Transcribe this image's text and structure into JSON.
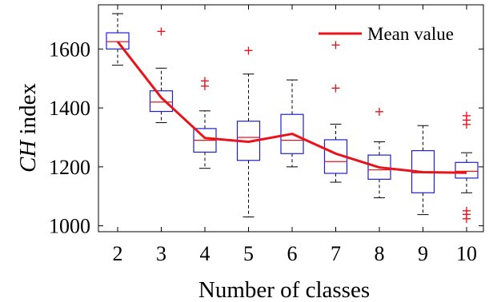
{
  "chart_data": {
    "type": "box",
    "xlabel": "Number of classes",
    "ylabel_italic": "CH",
    "ylabel_rest": " index",
    "ylim": [
      980,
      1750
    ],
    "yticks": [
      1000,
      1200,
      1400,
      1600
    ],
    "categories": [
      "2",
      "3",
      "4",
      "5",
      "6",
      "7",
      "8",
      "9",
      "10"
    ],
    "boxes": [
      {
        "label": "2",
        "whisker_low": 1545,
        "q1": 1600,
        "median": 1625,
        "q3": 1655,
        "whisker_high": 1720,
        "outliers": []
      },
      {
        "label": "3",
        "whisker_low": 1350,
        "q1": 1388,
        "median": 1420,
        "q3": 1458,
        "whisker_high": 1535,
        "outliers": [
          1660
        ]
      },
      {
        "label": "4",
        "whisker_low": 1195,
        "q1": 1250,
        "median": 1290,
        "q3": 1330,
        "whisker_high": 1390,
        "outliers": [
          1475,
          1492
        ]
      },
      {
        "label": "5",
        "whisker_low": 1030,
        "q1": 1222,
        "median": 1300,
        "q3": 1355,
        "whisker_high": 1515,
        "outliers": [
          1595
        ]
      },
      {
        "label": "6",
        "whisker_low": 1200,
        "q1": 1245,
        "median": 1290,
        "q3": 1378,
        "whisker_high": 1495,
        "outliers": []
      },
      {
        "label": "7",
        "whisker_low": 1148,
        "q1": 1178,
        "median": 1218,
        "q3": 1292,
        "whisker_high": 1345,
        "outliers": [
          1468,
          1615
        ]
      },
      {
        "label": "8",
        "whisker_low": 1095,
        "q1": 1158,
        "median": 1190,
        "q3": 1240,
        "whisker_high": 1285,
        "outliers": [
          1388
        ]
      },
      {
        "label": "9",
        "whisker_low": 1038,
        "q1": 1112,
        "median": 1180,
        "q3": 1255,
        "whisker_high": 1340,
        "outliers": []
      },
      {
        "label": "10",
        "whisker_low": 1112,
        "q1": 1162,
        "median": 1185,
        "q3": 1215,
        "whisker_high": 1248,
        "outliers": [
          1025,
          1040,
          1052,
          1345,
          1360,
          1375
        ]
      }
    ],
    "series": [
      {
        "name": "Mean value",
        "color": "#e8141b",
        "values": [
          1625,
          1435,
          1298,
          1285,
          1312,
          1245,
          1198,
          1182,
          1180
        ]
      }
    ],
    "legend": {
      "placement": "top-right",
      "entries": [
        "Mean value"
      ]
    },
    "colors": {
      "box": "#1f1fd1",
      "median": "#e8141b",
      "whisker": "#000000",
      "outlier": "#e8141b",
      "mean_line": "#e8141b"
    },
    "grid": false
  }
}
